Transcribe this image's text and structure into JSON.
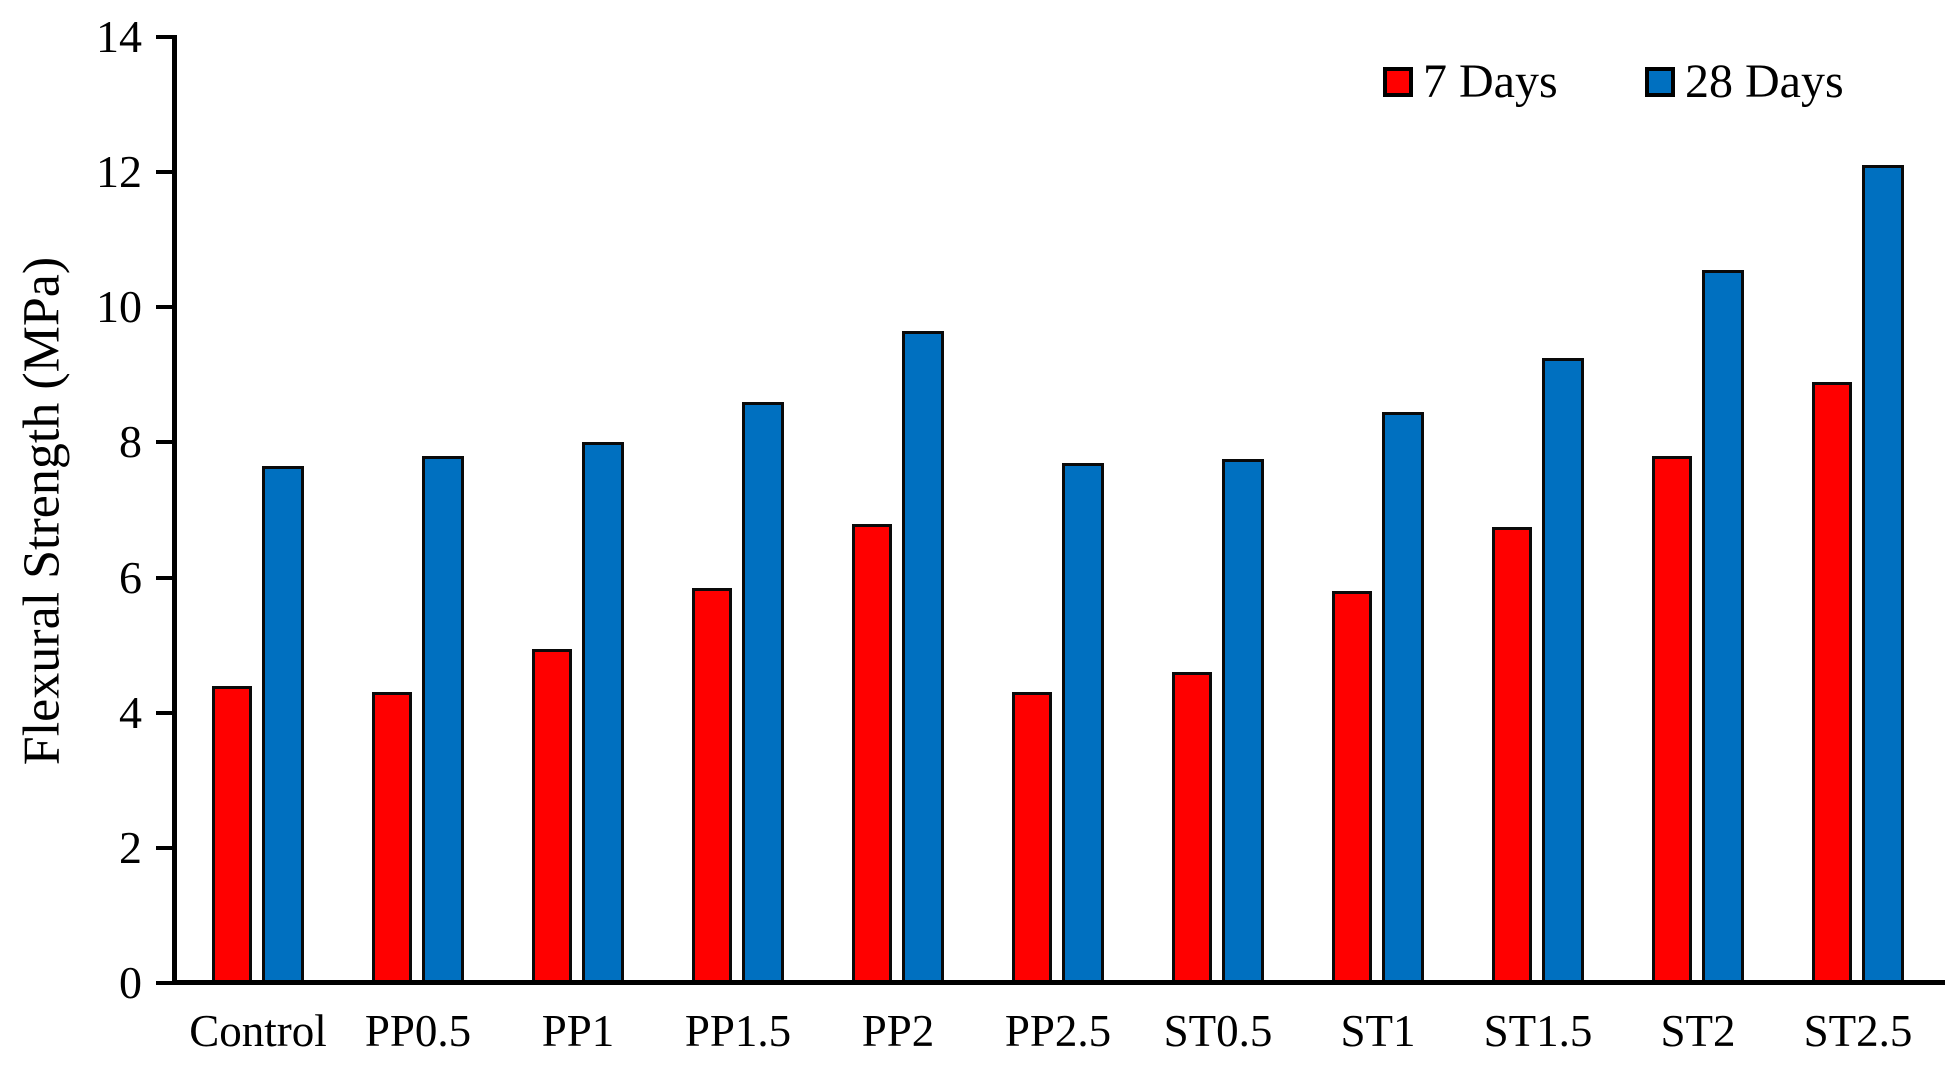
{
  "chart_data": {
    "type": "bar",
    "title": "",
    "xlabel": "",
    "ylabel": "Flexural Strength (MPa)",
    "ylim": [
      0,
      14
    ],
    "yticks": [
      0,
      2,
      4,
      6,
      8,
      10,
      12,
      14
    ],
    "grid": false,
    "legend_position": "top-right",
    "categories": [
      "Control",
      "PP0.5",
      "PP1",
      "PP1.5",
      "PP2",
      "PP2.5",
      "ST0.5",
      "ST1",
      "ST1.5",
      "ST2",
      "ST2.5"
    ],
    "series": [
      {
        "name": "7 Days",
        "color": "#FF0000",
        "values": [
          4.4,
          4.3,
          4.95,
          5.85,
          6.8,
          4.3,
          4.6,
          5.8,
          6.75,
          7.8,
          8.9
        ]
      },
      {
        "name": "28 Days",
        "color": "#0070C0",
        "values": [
          7.65,
          7.8,
          8.0,
          8.6,
          9.65,
          7.7,
          7.75,
          8.45,
          9.25,
          10.55,
          12.1
        ]
      }
    ],
    "bar_outline_color": "#000000",
    "axis_color": "#000000"
  }
}
